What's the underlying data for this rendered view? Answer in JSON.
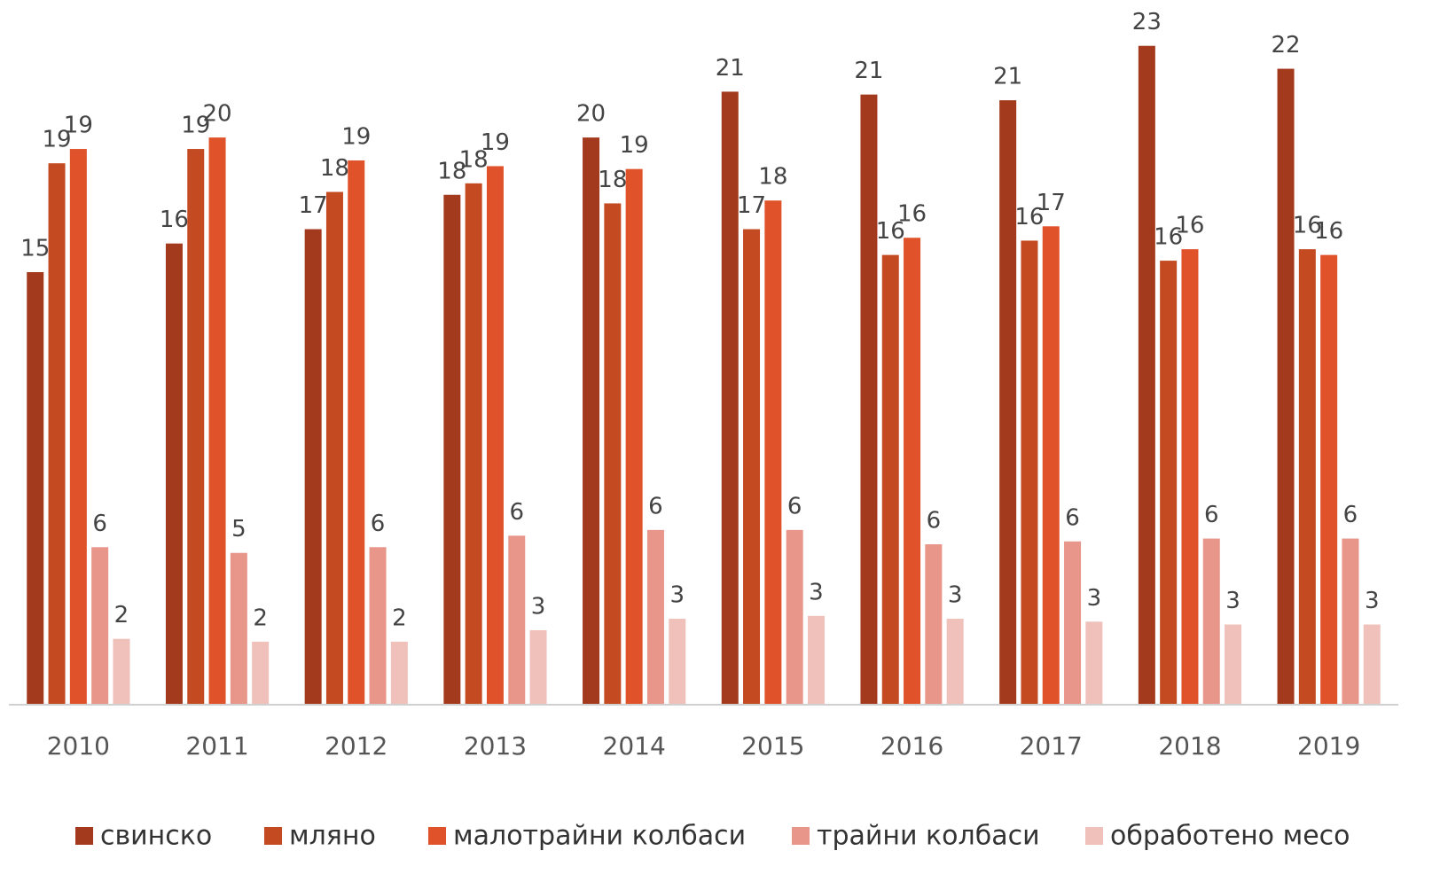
{
  "chart_data": {
    "type": "bar",
    "categories": [
      "2010",
      "2011",
      "2012",
      "2013",
      "2014",
      "2015",
      "2016",
      "2017",
      "2018",
      "2019"
    ],
    "ylim": [
      0,
      24.6
    ],
    "series": [
      {
        "name": "свинско",
        "color": "#a33a1e",
        "values": [
          15.1,
          16.1,
          16.6,
          17.8,
          19.8,
          21.4,
          21.3,
          21.1,
          23.0,
          22.2
        ],
        "value_labels": [
          "15",
          "16",
          "17",
          "18",
          "20",
          "21",
          "21",
          "21",
          "23",
          "22"
        ]
      },
      {
        "name": "мляно",
        "color": "#c44a22",
        "values": [
          18.9,
          19.4,
          17.9,
          18.2,
          17.5,
          16.6,
          15.7,
          16.2,
          15.5,
          15.9
        ],
        "value_labels": [
          "19",
          "19",
          "18",
          "18",
          "18",
          "17",
          "16",
          "16",
          "16",
          "16"
        ]
      },
      {
        "name": "малотрайни колбаси",
        "color": "#e0522a",
        "values": [
          19.4,
          19.8,
          19.0,
          18.8,
          18.7,
          17.6,
          16.3,
          16.7,
          15.9,
          15.7
        ],
        "value_labels": [
          "19",
          "20",
          "19",
          "19",
          "19",
          "18",
          "16",
          "17",
          "16",
          "16"
        ]
      },
      {
        "name": "трайни колбаси",
        "color": "#e8958a",
        "values": [
          5.5,
          5.3,
          5.5,
          5.9,
          6.1,
          6.1,
          5.6,
          5.7,
          5.8,
          5.8
        ],
        "value_labels": [
          "6",
          "5",
          "6",
          "6",
          "6",
          "6",
          "6",
          "6",
          "6",
          "6"
        ]
      },
      {
        "name": "обработено месо",
        "color": "#f0c0ba",
        "values": [
          2.3,
          2.2,
          2.2,
          2.6,
          3.0,
          3.1,
          3.0,
          2.9,
          2.8,
          2.8
        ],
        "value_labels": [
          "2",
          "2",
          "2",
          "3",
          "3",
          "3",
          "3",
          "3",
          "3",
          "3"
        ]
      }
    ]
  }
}
